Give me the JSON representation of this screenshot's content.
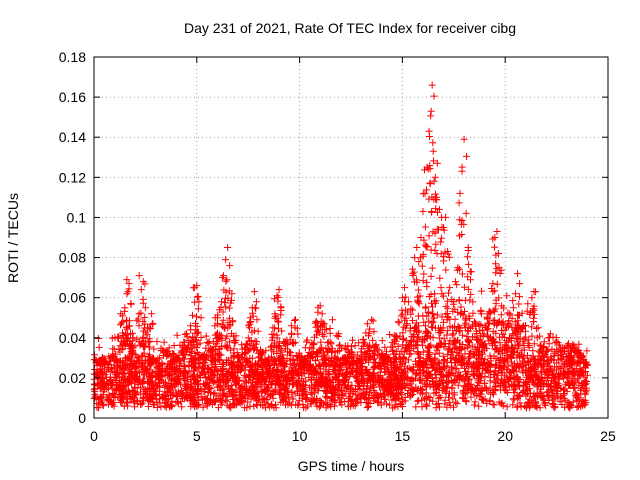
{
  "chart_data": {
    "type": "scatter",
    "title": "Day 231 of 2021, Rate Of TEC Index for receiver cibg",
    "xlabel": "GPS time / hours",
    "ylabel": "ROTI / TECUs",
    "xlim": [
      0,
      25
    ],
    "ylim": [
      0,
      0.18
    ],
    "x_ticks": [
      0,
      5,
      10,
      15,
      20,
      25
    ],
    "x_tick_labels": [
      "0",
      "5",
      "10",
      "15",
      "20",
      "25"
    ],
    "y_ticks": [
      0,
      0.02,
      0.04,
      0.06,
      0.08,
      0.1,
      0.12,
      0.14,
      0.16,
      0.18
    ],
    "y_tick_labels": [
      "0",
      "0.02",
      "0.04",
      "0.06",
      "0.08",
      "0.1",
      "0.12",
      "0.14",
      "0.16",
      "0.18"
    ],
    "grid": true,
    "marker": "+",
    "marker_color": "#ff0000",
    "series": [
      {
        "name": "ROTI",
        "points": [
          [
            0.1,
            0.022
          ],
          [
            0.3,
            0.018
          ],
          [
            0.5,
            0.027
          ],
          [
            0.7,
            0.015
          ],
          [
            0.9,
            0.031
          ],
          [
            1.1,
            0.02
          ],
          [
            1.3,
            0.052
          ],
          [
            1.4,
            0.048
          ],
          [
            1.5,
            0.055
          ],
          [
            1.6,
            0.062
          ],
          [
            1.6,
            0.069
          ],
          [
            1.7,
            0.067
          ],
          [
            1.8,
            0.057
          ],
          [
            1.9,
            0.04
          ],
          [
            2.0,
            0.025
          ],
          [
            2.2,
            0.071
          ],
          [
            2.3,
            0.064
          ],
          [
            2.4,
            0.068
          ],
          [
            2.5,
            0.055
          ],
          [
            2.6,
            0.045
          ],
          [
            2.8,
            0.052
          ],
          [
            3.0,
            0.028
          ],
          [
            3.2,
            0.019
          ],
          [
            3.5,
            0.033
          ],
          [
            3.8,
            0.022
          ],
          [
            4.0,
            0.029
          ],
          [
            4.3,
            0.036
          ],
          [
            4.5,
            0.042
          ],
          [
            4.7,
            0.046
          ],
          [
            4.8,
            0.04
          ],
          [
            4.9,
            0.065
          ],
          [
            5.0,
            0.066
          ],
          [
            5.1,
            0.058
          ],
          [
            5.3,
            0.031
          ],
          [
            5.6,
            0.038
          ],
          [
            5.9,
            0.05
          ],
          [
            6.0,
            0.047
          ],
          [
            6.1,
            0.054
          ],
          [
            6.2,
            0.058
          ],
          [
            6.3,
            0.071
          ],
          [
            6.4,
            0.079
          ],
          [
            6.5,
            0.085
          ],
          [
            6.6,
            0.076
          ],
          [
            6.7,
            0.062
          ],
          [
            6.9,
            0.041
          ],
          [
            7.1,
            0.03
          ],
          [
            7.4,
            0.037
          ],
          [
            7.6,
            0.05
          ],
          [
            7.7,
            0.055
          ],
          [
            7.8,
            0.063
          ],
          [
            7.9,
            0.058
          ],
          [
            8.1,
            0.034
          ],
          [
            8.4,
            0.027
          ],
          [
            8.7,
            0.045
          ],
          [
            8.8,
            0.052
          ],
          [
            8.9,
            0.061
          ],
          [
            9.0,
            0.064
          ],
          [
            9.1,
            0.055
          ],
          [
            9.3,
            0.038
          ],
          [
            9.6,
            0.046
          ],
          [
            9.8,
            0.049
          ],
          [
            10.0,
            0.031
          ],
          [
            10.3,
            0.028
          ],
          [
            10.5,
            0.035
          ],
          [
            10.8,
            0.048
          ],
          [
            10.9,
            0.055
          ],
          [
            11.0,
            0.056
          ],
          [
            11.1,
            0.052
          ],
          [
            11.3,
            0.044
          ],
          [
            11.6,
            0.049
          ],
          [
            11.9,
            0.042
          ],
          [
            12.2,
            0.03
          ],
          [
            12.5,
            0.033
          ],
          [
            12.8,
            0.027
          ],
          [
            13.1,
            0.039
          ],
          [
            13.3,
            0.047
          ],
          [
            13.5,
            0.049
          ],
          [
            13.7,
            0.036
          ],
          [
            14.0,
            0.032
          ],
          [
            14.3,
            0.03
          ],
          [
            14.6,
            0.041
          ],
          [
            14.8,
            0.048
          ],
          [
            15.0,
            0.06
          ],
          [
            15.1,
            0.065
          ],
          [
            15.3,
            0.058
          ],
          [
            15.5,
            0.072
          ],
          [
            15.6,
            0.08
          ],
          [
            15.7,
            0.085
          ],
          [
            15.8,
            0.078
          ],
          [
            15.9,
            0.09
          ],
          [
            16.0,
            0.103
          ],
          [
            16.1,
            0.112
          ],
          [
            16.2,
            0.125
          ],
          [
            16.3,
            0.143
          ],
          [
            16.4,
            0.153
          ],
          [
            16.45,
            0.166
          ],
          [
            16.5,
            0.133
          ],
          [
            16.6,
            0.12
          ],
          [
            16.7,
            0.127
          ],
          [
            16.8,
            0.104
          ],
          [
            16.9,
            0.1
          ],
          [
            17.0,
            0.095
          ],
          [
            17.1,
            0.1
          ],
          [
            17.2,
            0.083
          ],
          [
            17.3,
            0.065
          ],
          [
            17.5,
            0.058
          ],
          [
            17.7,
            0.075
          ],
          [
            17.8,
            0.112
          ],
          [
            17.9,
            0.123
          ],
          [
            18.0,
            0.139
          ],
          [
            18.1,
            0.102
          ],
          [
            18.2,
            0.085
          ],
          [
            18.3,
            0.073
          ],
          [
            18.5,
            0.048
          ],
          [
            18.8,
            0.041
          ],
          [
            19.0,
            0.037
          ],
          [
            19.2,
            0.052
          ],
          [
            19.4,
            0.067
          ],
          [
            19.5,
            0.09
          ],
          [
            19.6,
            0.093
          ],
          [
            19.7,
            0.075
          ],
          [
            19.9,
            0.048
          ],
          [
            20.2,
            0.04
          ],
          [
            20.4,
            0.055
          ],
          [
            20.5,
            0.062
          ],
          [
            20.6,
            0.072
          ],
          [
            20.7,
            0.067
          ],
          [
            20.9,
            0.046
          ],
          [
            21.1,
            0.057
          ],
          [
            21.3,
            0.06
          ],
          [
            21.4,
            0.063
          ],
          [
            21.6,
            0.045
          ],
          [
            21.9,
            0.038
          ],
          [
            22.2,
            0.042
          ],
          [
            22.5,
            0.038
          ],
          [
            22.8,
            0.035
          ],
          [
            23.1,
            0.031
          ],
          [
            23.3,
            0.036
          ],
          [
            23.5,
            0.034
          ],
          [
            23.7,
            0.031
          ],
          [
            23.9,
            0.025
          ]
        ],
        "baseline_band": [
          0.005,
          0.03
        ]
      }
    ]
  }
}
